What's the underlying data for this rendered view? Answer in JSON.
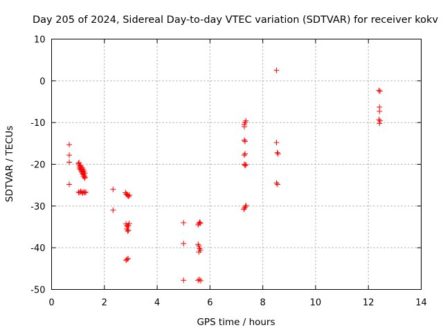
{
  "chart_data": {
    "type": "scatter",
    "title": "Day 205 of 2024, Sidereal Day-to-day VTEC variation (SDTVAR) for receiver kokv",
    "xlabel": "GPS time / hours",
    "ylabel": "SDTVAR / TECUs",
    "xlim": [
      0,
      14
    ],
    "ylim": [
      -50,
      10
    ],
    "xticks": [
      0,
      2,
      4,
      6,
      8,
      10,
      12,
      14
    ],
    "yticks": [
      -50,
      -40,
      -30,
      -20,
      -10,
      0,
      10
    ],
    "grid": true,
    "marker": "+",
    "color": "#ff0000",
    "points": [
      [
        0.67,
        -15.3
      ],
      [
        0.67,
        -17.8
      ],
      [
        0.67,
        -19.5
      ],
      [
        0.67,
        -24.8
      ],
      [
        1.02,
        -19.8
      ],
      [
        1.05,
        -20.2
      ],
      [
        1.08,
        -20.5
      ],
      [
        1.1,
        -20.8
      ],
      [
        1.12,
        -21.1
      ],
      [
        1.14,
        -21.4
      ],
      [
        1.16,
        -21.7
      ],
      [
        1.18,
        -21.9
      ],
      [
        1.2,
        -22.2
      ],
      [
        1.22,
        -22.5
      ],
      [
        1.24,
        -22.8
      ],
      [
        1.27,
        -23.1
      ],
      [
        1.05,
        -20.9
      ],
      [
        1.09,
        -21.3
      ],
      [
        1.13,
        -21.8
      ],
      [
        1.17,
        -22.3
      ],
      [
        1.21,
        -22.9
      ],
      [
        1.25,
        -23.3
      ],
      [
        1.04,
        -19.6
      ],
      [
        1.11,
        -20.4
      ],
      [
        1.15,
        -20.8
      ],
      [
        1.19,
        -21.2
      ],
      [
        1.23,
        -21.6
      ],
      [
        1.26,
        -22.1
      ],
      [
        1.02,
        -26.7
      ],
      [
        1.06,
        -26.8
      ],
      [
        1.1,
        -26.5
      ],
      [
        1.14,
        -26.7
      ],
      [
        1.18,
        -26.9
      ],
      [
        1.22,
        -26.6
      ],
      [
        1.26,
        -26.8
      ],
      [
        1.3,
        -26.7
      ],
      [
        2.33,
        -26.0
      ],
      [
        2.33,
        -31.0
      ],
      [
        2.8,
        -26.8
      ],
      [
        2.83,
        -27.1
      ],
      [
        2.86,
        -27.3
      ],
      [
        2.89,
        -27.5
      ],
      [
        2.92,
        -27.7
      ],
      [
        2.95,
        -27.4
      ],
      [
        2.82,
        -34.3
      ],
      [
        2.85,
        -34.7
      ],
      [
        2.88,
        -35.0
      ],
      [
        2.91,
        -34.6
      ],
      [
        2.94,
        -34.2
      ],
      [
        2.85,
        -35.5
      ],
      [
        2.88,
        -36.0
      ],
      [
        2.91,
        -35.8
      ],
      [
        2.82,
        -43.0
      ],
      [
        2.86,
        -42.8
      ],
      [
        2.9,
        -42.6
      ],
      [
        5.0,
        -34.0
      ],
      [
        5.0,
        -39.0
      ],
      [
        5.0,
        -47.8
      ],
      [
        5.55,
        -34.5
      ],
      [
        5.58,
        -34.2
      ],
      [
        5.61,
        -33.9
      ],
      [
        5.64,
        -34.1
      ],
      [
        5.55,
        -39.2
      ],
      [
        5.58,
        -39.6
      ],
      [
        5.61,
        -40.2
      ],
      [
        5.64,
        -40.6
      ],
      [
        5.58,
        -41.0
      ],
      [
        5.55,
        -47.8
      ],
      [
        5.6,
        -47.6
      ],
      [
        5.65,
        -47.9
      ],
      [
        7.3,
        -10.5
      ],
      [
        7.33,
        -10.0
      ],
      [
        7.36,
        -9.6
      ],
      [
        7.3,
        -11.0
      ],
      [
        7.3,
        -14.2
      ],
      [
        7.33,
        -14.5
      ],
      [
        7.3,
        -17.8
      ],
      [
        7.33,
        -17.5
      ],
      [
        7.3,
        -20.0
      ],
      [
        7.33,
        -20.3
      ],
      [
        7.36,
        -20.1
      ],
      [
        7.28,
        -30.8
      ],
      [
        7.31,
        -30.5
      ],
      [
        7.34,
        -30.2
      ],
      [
        7.37,
        -29.9
      ],
      [
        8.52,
        2.5
      ],
      [
        8.52,
        -14.8
      ],
      [
        8.55,
        -17.2
      ],
      [
        8.58,
        -17.5
      ],
      [
        8.52,
        -24.5
      ],
      [
        8.56,
        -24.8
      ],
      [
        12.4,
        -2.3
      ],
      [
        12.44,
        -2.5
      ],
      [
        12.42,
        -6.3
      ],
      [
        12.42,
        -7.3
      ],
      [
        12.4,
        -9.3
      ],
      [
        12.44,
        -9.6
      ],
      [
        12.42,
        -10.2
      ]
    ]
  }
}
